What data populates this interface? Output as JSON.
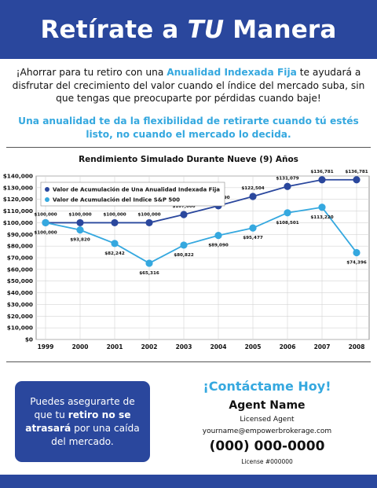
{
  "header": {
    "title_part1": "Retírate a ",
    "title_emphasis": "TU",
    "title_part2": " Manera"
  },
  "intro": {
    "part1": "¡Ahorrar para tu retiro con una ",
    "highlight": "Anualidad Indexada Fija",
    "part2": " te ayudará a disfrutar del crecimiento del valor cuando el índice del mercado suba, sin que tengas que preocuparte por pérdidas cuando baje!"
  },
  "tagline": "Una anualidad te da la flexibilidad de retirarte cuando tú estés listo, no cuando el mercado lo decida.",
  "cta": {
    "part1": "Puedes asegurarte de que tu ",
    "bold1": "retiro no se atrasará",
    "part2": " por una caída del mercado."
  },
  "contact": {
    "heading": "¡Contáctame Hoy!",
    "name": "Agent Name",
    "role": "Licensed Agent",
    "email": "yourname@empowerbrokerage.com",
    "phone": "(000) 000-0000",
    "license": "License #000000"
  },
  "colors": {
    "brand_blue": "#2a479d",
    "accent_light_blue": "#35a8df",
    "series1": "#2a479d",
    "series2": "#35a8df"
  },
  "chart_data": {
    "type": "line",
    "title": "Rendimiento Simulado Durante Nueve (9) Años",
    "xlabel": "",
    "ylabel": "",
    "categories": [
      "1999",
      "2000",
      "2001",
      "2002",
      "2003",
      "2004",
      "2005",
      "2006",
      "2007",
      "2008"
    ],
    "ylim": [
      0,
      140000
    ],
    "yticks": [
      0,
      10000,
      20000,
      30000,
      40000,
      50000,
      60000,
      70000,
      80000,
      90000,
      100000,
      110000,
      120000,
      130000,
      140000
    ],
    "ytick_labels": [
      "$0",
      "$10,000",
      "$20,000",
      "$30,000",
      "$40,000",
      "$50,000",
      "$60,000",
      "$70,000",
      "$80,000",
      "$90,000",
      "$100,000",
      "$110,000",
      "$120,000",
      "$130,000",
      "$140,000"
    ],
    "grid": true,
    "legend_position": "top-left",
    "series": [
      {
        "name": "Valor de Acumulación de Una Anualidad Indexada Fija",
        "color": "#2a479d",
        "values": [
          100000,
          100000,
          100000,
          100000,
          107000,
          114490,
          122504,
          131079,
          136781,
          136781
        ],
        "labels": [
          "$100,000",
          "$100,000",
          "$100,000",
          "$100,000",
          "$107,000",
          "$114,490",
          "$122,504",
          "$131,079",
          "$136,781",
          "$136,781"
        ]
      },
      {
        "name": "Valor de Acumulación del Indice S&P 500",
        "color": "#35a8df",
        "values": [
          100000,
          93820,
          82242,
          65316,
          80822,
          89090,
          95477,
          108501,
          113220,
          74396
        ],
        "labels": [
          "$100,000",
          "$93,820",
          "$82,242",
          "$65,316",
          "$80,822",
          "$89,090",
          "$95,477",
          "$108,501",
          "$113,220",
          "$74,396"
        ]
      }
    ]
  }
}
